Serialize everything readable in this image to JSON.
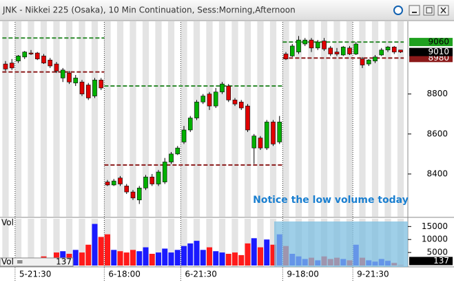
{
  "window": {
    "title": "JNK - Nikkei 225 (Osaka), 10 Min Continuation, Sess:Morning,Afternoon"
  },
  "chart_data": [
    {
      "type": "candlestick",
      "categories": [
        null,
        null,
        "5-21:30",
        null,
        null,
        null,
        null,
        null,
        null,
        null,
        null,
        null,
        null,
        null,
        null,
        null,
        "6-18:00",
        null,
        null,
        null,
        null,
        null,
        null,
        null,
        null,
        null,
        null,
        null,
        "6-21:30",
        null,
        null,
        null,
        null,
        null,
        null,
        null,
        null,
        null,
        null,
        null,
        null,
        null,
        null,
        null,
        "9-18:00",
        null,
        null,
        null,
        null,
        null,
        null,
        null,
        null,
        null,
        null,
        "9-21:30",
        null,
        null,
        null,
        null,
        null,
        null,
        null
      ],
      "open": [
        8950,
        8955,
        8965,
        8985,
        9005,
        9005,
        8990,
        8970,
        8950,
        8880,
        8905,
        8855,
        8860,
        8845,
        8790,
        8870,
        8360,
        8345,
        8380,
        8340,
        8310,
        8270,
        8330,
        8385,
        8350,
        8360,
        8460,
        8500,
        8560,
        8620,
        8680,
        8760,
        8800,
        8740,
        8810,
        8840,
        8770,
        8760,
        8740,
        8530,
        8580,
        8530,
        8660,
        8560,
        9000,
        8990,
        9010,
        9050,
        9070,
        9030,
        9065,
        9030,
        9010,
        8995,
        9030,
        9000,
        8975,
        8950,
        8965,
        8995,
        9020,
        9035,
        9020
      ],
      "high": [
        8965,
        8975,
        8995,
        9015,
        9020,
        9010,
        9000,
        8980,
        8960,
        8930,
        8915,
        8895,
        8870,
        8855,
        8880,
        8880,
        8370,
        8375,
        8390,
        8350,
        8320,
        8340,
        8395,
        8400,
        8420,
        8480,
        8510,
        8540,
        8640,
        8690,
        8770,
        8800,
        8810,
        8830,
        8860,
        8850,
        8780,
        8770,
        8750,
        8600,
        8590,
        8670,
        8670,
        8690,
        9010,
        9050,
        9090,
        9080,
        9080,
        9070,
        9080,
        9040,
        9030,
        9040,
        9040,
        9060,
        8985,
        8975,
        8995,
        9030,
        9040,
        9040,
        9020
      ],
      "low": [
        8915,
        8920,
        8955,
        8975,
        8995,
        8970,
        8950,
        8930,
        8905,
        8860,
        8850,
        8840,
        8790,
        8770,
        8780,
        8820,
        8340,
        8340,
        8340,
        8300,
        8270,
        8250,
        8320,
        8340,
        8340,
        8350,
        8450,
        8495,
        8550,
        8610,
        8670,
        8750,
        8720,
        8730,
        8800,
        8760,
        8740,
        8720,
        8610,
        8450,
        8520,
        8520,
        8540,
        8550,
        8970,
        8985,
        9000,
        9040,
        9010,
        9020,
        9015,
        8990,
        8990,
        8990,
        8995,
        8995,
        8930,
        8940,
        8955,
        8990,
        9010,
        9000,
        9005
      ],
      "close": [
        8925,
        8930,
        8990,
        9010,
        9000,
        8975,
        8955,
        8940,
        8915,
        8920,
        8860,
        8880,
        8800,
        8780,
        8870,
        8830,
        8345,
        8365,
        8350,
        8310,
        8280,
        8330,
        8385,
        8350,
        8410,
        8460,
        8500,
        8530,
        8620,
        8680,
        8760,
        8790,
        8740,
        8810,
        8850,
        8770,
        8750,
        8730,
        8620,
        8590,
        8530,
        8660,
        8550,
        8660,
        8975,
        9040,
        9070,
        9070,
        9030,
        9060,
        9025,
        9000,
        9000,
        9035,
        9000,
        9050,
        8945,
        8970,
        8985,
        9020,
        9035,
        9010,
        9010
      ],
      "up_color": "#00b000",
      "down_color": "#e00000",
      "ylim": [
        8190,
        9160
      ],
      "yticks": [
        8400,
        8600,
        8800
      ],
      "levels": [
        {
          "value": 9080,
          "color": "#2e8b2e",
          "start": 0,
          "end": 15
        },
        {
          "value": 8910,
          "color": "#8b1a1a",
          "start": 0,
          "end": 15
        },
        {
          "value": 8840,
          "color": "#2e8b2e",
          "start": 16,
          "end": 43
        },
        {
          "value": 8445,
          "color": "#8b1a1a",
          "start": 16,
          "end": 43
        },
        {
          "value": 9060,
          "color": "#2e8b2e",
          "start": 44,
          "end": 62
        },
        {
          "value": 8980,
          "color": "#8b1a1a",
          "start": 44,
          "end": 62
        }
      ],
      "annotation": "Notice the low volume today"
    },
    {
      "type": "bar",
      "title": "Vol",
      "value_label": "Vol =",
      "values": [
        2500,
        1200,
        1800,
        2200,
        1500,
        2800,
        3500,
        3000,
        5000,
        5500,
        4500,
        6000,
        5000,
        8000,
        16000,
        11000,
        12000,
        6000,
        5500,
        5000,
        6000,
        5500,
        7000,
        4500,
        5000,
        6500,
        5000,
        6000,
        7500,
        8500,
        9500,
        6000,
        7000,
        5500,
        5000,
        4500,
        5000,
        4000,
        8500,
        10500,
        7000,
        10000,
        8000,
        12000,
        7500,
        4500,
        3500,
        2500,
        3000,
        2000,
        3500,
        2500,
        3000,
        2500,
        2000,
        8000,
        3000,
        2000,
        1500,
        2500,
        1800,
        1000,
        137
      ],
      "up_color": "#1a1aff",
      "down_color": "#ff1a1a",
      "ylim": [
        0,
        18000
      ],
      "yticks": [
        5000,
        10000,
        15000
      ]
    }
  ]
}
